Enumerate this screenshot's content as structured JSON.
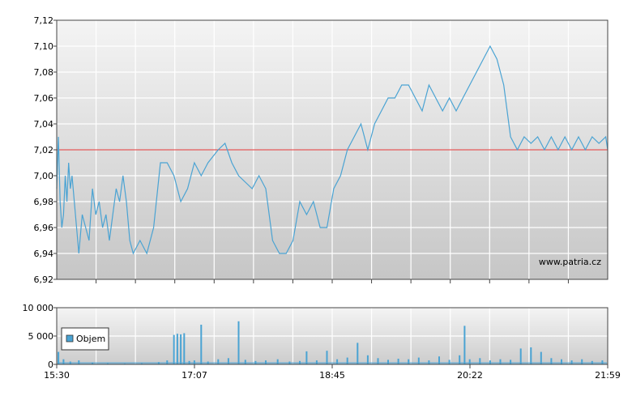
{
  "chart_data": [
    {
      "type": "line",
      "title": "",
      "xlabel": "",
      "ylabel": "",
      "ylim": [
        6.92,
        7.12
      ],
      "y_ticks": [
        "7,12",
        "7,10",
        "7,08",
        "7,06",
        "7,04",
        "7,02",
        "7,00",
        "6,98",
        "6,96",
        "6,94",
        "6,92"
      ],
      "x_ticks": [
        "15:30",
        "17:07",
        "18:45",
        "20:22",
        "21:59"
      ],
      "reference_line": 7.02,
      "watermark": "www.patria.cz",
      "grid": true,
      "colors": {
        "line": "#4aa3d3",
        "reference": "#e03030",
        "bg_top": "#f2f2f2",
        "bg_bottom": "#c8c8c8"
      },
      "series": [
        {
          "points": [
            [
              15.5,
              6.99
            ],
            [
              15.52,
              7.03
            ],
            [
              15.54,
              6.98
            ],
            [
              15.56,
              6.96
            ],
            [
              15.58,
              6.97
            ],
            [
              15.6,
              7.0
            ],
            [
              15.62,
              6.98
            ],
            [
              15.64,
              7.01
            ],
            [
              15.66,
              6.99
            ],
            [
              15.68,
              7.0
            ],
            [
              15.72,
              6.97
            ],
            [
              15.76,
              6.94
            ],
            [
              15.8,
              6.97
            ],
            [
              15.84,
              6.96
            ],
            [
              15.88,
              6.95
            ],
            [
              15.92,
              6.99
            ],
            [
              15.96,
              6.97
            ],
            [
              16.0,
              6.98
            ],
            [
              16.04,
              6.96
            ],
            [
              16.08,
              6.97
            ],
            [
              16.12,
              6.95
            ],
            [
              16.16,
              6.97
            ],
            [
              16.2,
              6.99
            ],
            [
              16.24,
              6.98
            ],
            [
              16.28,
              7.0
            ],
            [
              16.32,
              6.98
            ],
            [
              16.36,
              6.95
            ],
            [
              16.4,
              6.94
            ],
            [
              16.48,
              6.95
            ],
            [
              16.56,
              6.94
            ],
            [
              16.64,
              6.96
            ],
            [
              16.72,
              7.01
            ],
            [
              16.8,
              7.01
            ],
            [
              16.88,
              7.0
            ],
            [
              16.96,
              6.98
            ],
            [
              17.04,
              6.99
            ],
            [
              17.12,
              7.01
            ],
            [
              17.2,
              7.0
            ],
            [
              17.28,
              7.01
            ],
            [
              17.4,
              7.02
            ],
            [
              17.48,
              7.025
            ],
            [
              17.56,
              7.01
            ],
            [
              17.64,
              7.0
            ],
            [
              17.72,
              6.995
            ],
            [
              17.8,
              6.99
            ],
            [
              17.88,
              7.0
            ],
            [
              17.96,
              6.99
            ],
            [
              18.04,
              6.95
            ],
            [
              18.12,
              6.94
            ],
            [
              18.2,
              6.94
            ],
            [
              18.28,
              6.95
            ],
            [
              18.36,
              6.98
            ],
            [
              18.44,
              6.97
            ],
            [
              18.52,
              6.98
            ],
            [
              18.6,
              6.96
            ],
            [
              18.68,
              6.96
            ],
            [
              18.76,
              6.99
            ],
            [
              18.84,
              7.0
            ],
            [
              18.92,
              7.02
            ],
            [
              19.0,
              7.03
            ],
            [
              19.08,
              7.04
            ],
            [
              19.16,
              7.02
            ],
            [
              19.24,
              7.04
            ],
            [
              19.32,
              7.05
            ],
            [
              19.4,
              7.06
            ],
            [
              19.48,
              7.06
            ],
            [
              19.56,
              7.07
            ],
            [
              19.64,
              7.07
            ],
            [
              19.72,
              7.06
            ],
            [
              19.8,
              7.05
            ],
            [
              19.88,
              7.07
            ],
            [
              19.96,
              7.06
            ],
            [
              20.04,
              7.05
            ],
            [
              20.12,
              7.06
            ],
            [
              20.2,
              7.05
            ],
            [
              20.28,
              7.06
            ],
            [
              20.36,
              7.07
            ],
            [
              20.44,
              7.08
            ],
            [
              20.52,
              7.09
            ],
            [
              20.6,
              7.1
            ],
            [
              20.68,
              7.09
            ],
            [
              20.76,
              7.07
            ],
            [
              20.84,
              7.03
            ],
            [
              20.92,
              7.02
            ],
            [
              21.0,
              7.03
            ],
            [
              21.08,
              7.025
            ],
            [
              21.16,
              7.03
            ],
            [
              21.24,
              7.02
            ],
            [
              21.32,
              7.03
            ],
            [
              21.4,
              7.02
            ],
            [
              21.48,
              7.03
            ],
            [
              21.56,
              7.02
            ],
            [
              21.64,
              7.03
            ],
            [
              21.72,
              7.02
            ],
            [
              21.8,
              7.03
            ],
            [
              21.88,
              7.025
            ],
            [
              21.96,
              7.03
            ],
            [
              21.983,
              7.02
            ]
          ]
        }
      ]
    },
    {
      "type": "bar",
      "title": "",
      "ylim": [
        0,
        10000
      ],
      "y_ticks": [
        "10 000",
        "5 000",
        "0"
      ],
      "x_ticks": [
        "15:30",
        "17:07",
        "18:45",
        "20:22",
        "21:59"
      ],
      "legend": {
        "label": "Objem",
        "placement": "top-left"
      },
      "colors": {
        "bar": "#4aa3d3",
        "bg_top": "#f2f2f2",
        "bg_bottom": "#c8c8c8"
      },
      "bars": [
        [
          15.52,
          2200
        ],
        [
          15.58,
          900
        ],
        [
          15.66,
          500
        ],
        [
          15.76,
          700
        ],
        [
          15.92,
          300
        ],
        [
          16.1,
          200
        ],
        [
          16.3,
          150
        ],
        [
          16.5,
          200
        ],
        [
          16.7,
          400
        ],
        [
          16.8,
          700
        ],
        [
          16.88,
          5200
        ],
        [
          16.92,
          5400
        ],
        [
          16.96,
          5300
        ],
        [
          17.0,
          5500
        ],
        [
          17.06,
          600
        ],
        [
          17.12,
          700
        ],
        [
          17.2,
          7000
        ],
        [
          17.28,
          500
        ],
        [
          17.4,
          900
        ],
        [
          17.52,
          1100
        ],
        [
          17.64,
          7600
        ],
        [
          17.72,
          800
        ],
        [
          17.84,
          600
        ],
        [
          17.96,
          700
        ],
        [
          18.1,
          900
        ],
        [
          18.24,
          500
        ],
        [
          18.36,
          600
        ],
        [
          18.44,
          2300
        ],
        [
          18.56,
          700
        ],
        [
          18.68,
          2400
        ],
        [
          18.8,
          900
        ],
        [
          18.92,
          1200
        ],
        [
          19.04,
          3800
        ],
        [
          19.16,
          1600
        ],
        [
          19.28,
          1100
        ],
        [
          19.4,
          800
        ],
        [
          19.52,
          1000
        ],
        [
          19.64,
          900
        ],
        [
          19.76,
          1200
        ],
        [
          19.88,
          700
        ],
        [
          20.0,
          1400
        ],
        [
          20.12,
          800
        ],
        [
          20.24,
          1600
        ],
        [
          20.3,
          6800
        ],
        [
          20.36,
          900
        ],
        [
          20.48,
          1100
        ],
        [
          20.6,
          700
        ],
        [
          20.72,
          900
        ],
        [
          20.84,
          800
        ],
        [
          20.96,
          2800
        ],
        [
          21.08,
          3000
        ],
        [
          21.2,
          2200
        ],
        [
          21.32,
          1100
        ],
        [
          21.44,
          900
        ],
        [
          21.56,
          700
        ],
        [
          21.68,
          900
        ],
        [
          21.8,
          600
        ],
        [
          21.92,
          700
        ]
      ]
    }
  ]
}
